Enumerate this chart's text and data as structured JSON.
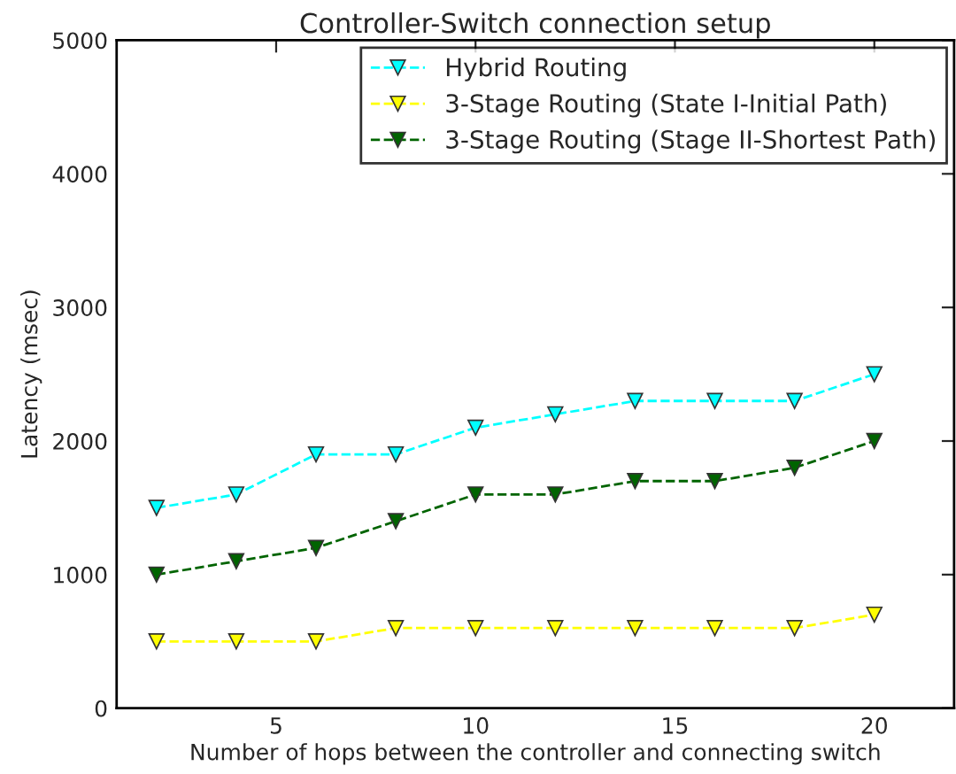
{
  "chart_data": {
    "type": "line",
    "title": "Controller-Switch connection setup",
    "xlabel": "Number of hops between the controller and connecting switch",
    "ylabel": "Latency (msec)",
    "x": [
      2,
      4,
      6,
      8,
      10,
      12,
      14,
      16,
      18,
      20
    ],
    "series": [
      {
        "name": "Hybrid Routing",
        "color": "#00ffff",
        "values": [
          1500,
          1600,
          1900,
          1900,
          2100,
          2200,
          2300,
          2300,
          2300,
          2500
        ]
      },
      {
        "name": "3-Stage Routing (State I-Initial Path)",
        "color": "#ffff00",
        "values": [
          500,
          500,
          500,
          600,
          600,
          600,
          600,
          600,
          600,
          700
        ]
      },
      {
        "name": "3-Stage Routing (Stage II-Shortest Path)",
        "color": "#006400",
        "values": [
          1000,
          1100,
          1200,
          1400,
          1600,
          1600,
          1700,
          1700,
          1800,
          2000
        ]
      }
    ],
    "xlim": [
      1,
      22
    ],
    "xticks": [
      5,
      10,
      15,
      20
    ],
    "ylim": [
      0,
      5000
    ],
    "yticks": [
      0,
      1000,
      2000,
      3000,
      4000,
      5000
    ],
    "grid": false,
    "legend": "top right",
    "marker": "triangle",
    "line_style": "dashed"
  }
}
